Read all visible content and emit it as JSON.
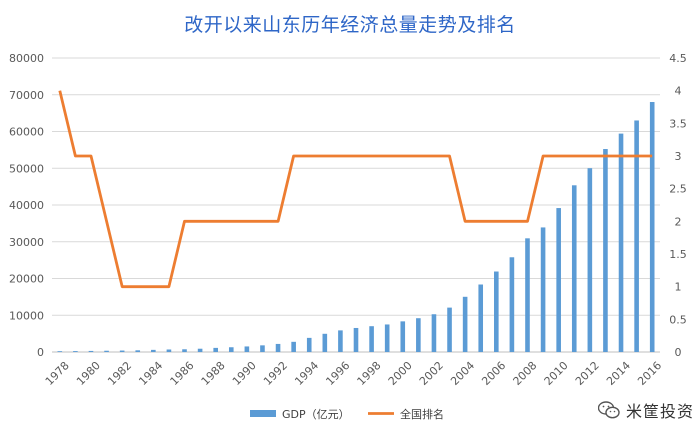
{
  "chart_data": {
    "type": "bar+line",
    "title": "改开以来山东历年经济总量走势及排名",
    "x": [
      "1978",
      "1979",
      "1980",
      "1981",
      "1982",
      "1983",
      "1984",
      "1985",
      "1986",
      "1987",
      "1988",
      "1989",
      "1990",
      "1991",
      "1992",
      "1993",
      "1994",
      "1995",
      "1996",
      "1997",
      "1998",
      "1999",
      "2000",
      "2001",
      "2002",
      "2003",
      "2004",
      "2005",
      "2006",
      "2007",
      "2008",
      "2009",
      "2010",
      "2011",
      "2012",
      "2013",
      "2014",
      "2015",
      "2016"
    ],
    "x_tick_labels": [
      "1978",
      "1980",
      "1982",
      "1984",
      "1986",
      "1988",
      "1990",
      "1992",
      "1994",
      "1996",
      "1998",
      "2000",
      "2002",
      "2004",
      "2006",
      "2008",
      "2010",
      "2012",
      "2014",
      "2016"
    ],
    "series": [
      {
        "name": "GDP（亿元）",
        "type": "bar",
        "axis": "left",
        "color": "#5b9bd5",
        "values": [
          225,
          251,
          292,
          346,
          395,
          459,
          581,
          681,
          742,
          892,
          1118,
          1293,
          1512,
          1810,
          2196,
          2770,
          3844,
          4953,
          5883,
          6537,
          7021,
          7493,
          8337,
          9195,
          10275,
          12078,
          15021,
          18366,
          21900,
          25776,
          30933,
          33896,
          39169,
          45361,
          50013,
          55230,
          59426,
          63002,
          68024
        ]
      },
      {
        "name": "全国排名",
        "type": "line",
        "axis": "right",
        "color": "#ed7d31",
        "values": [
          4,
          3,
          3,
          2,
          1,
          1,
          1,
          1,
          2,
          2,
          2,
          2,
          2,
          2,
          2,
          3,
          3,
          3,
          3,
          3,
          3,
          3,
          3,
          3,
          3,
          3,
          2,
          2,
          2,
          2,
          2,
          3,
          3,
          3,
          3,
          3,
          3,
          3,
          3
        ]
      }
    ],
    "y_left": {
      "min": 0,
      "max": 80000,
      "ticks": [
        "0",
        "10000",
        "20000",
        "30000",
        "40000",
        "50000",
        "60000",
        "70000",
        "80000"
      ]
    },
    "y_right": {
      "min": 0,
      "max": 4.5,
      "ticks": [
        "0",
        "0.5",
        "1",
        "1.5",
        "2",
        "2.5",
        "3",
        "3.5",
        "4",
        "4.5"
      ]
    },
    "grid": true,
    "legend_position": "bottom"
  },
  "watermark": {
    "text": "米筐投资",
    "icon": "wechat-icon"
  }
}
